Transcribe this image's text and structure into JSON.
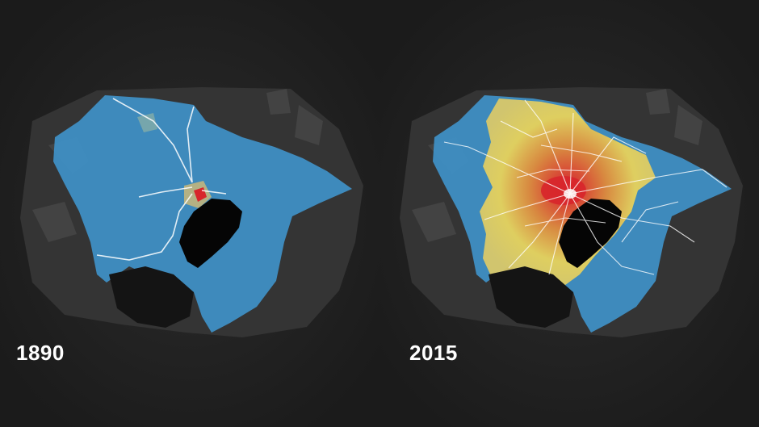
{
  "panels": [
    {
      "year": "1890"
    },
    {
      "year": "2015"
    }
  ],
  "colors": {
    "background": "#1f1f1f",
    "land_dark": "#2e2e2e",
    "land_texture": "#4a4a4a",
    "bay": "#050505",
    "region_low": "#3f8fc4",
    "region_mid": "#e7d25b",
    "region_high": "#e08a3a",
    "region_core": "#d8252b",
    "rail_lines": "#ffffff"
  }
}
